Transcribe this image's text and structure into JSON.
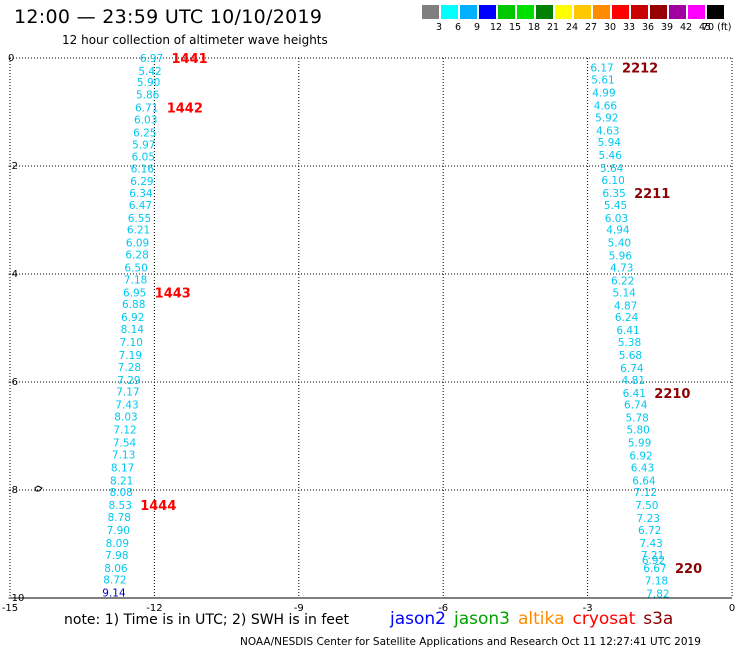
{
  "header": {
    "title": "12:00 — 23:59 UTC 10/10/2019",
    "subtitle": "12 hour collection of altimeter wave heights"
  },
  "legend": {
    "swatches": [
      {
        "color": "#7f7f7f",
        "label": "3"
      },
      {
        "color": "#00ffff",
        "label": "6"
      },
      {
        "color": "#00b0ff",
        "label": "9"
      },
      {
        "color": "#0000ff",
        "label": "12"
      },
      {
        "color": "#00c800",
        "label": "15"
      },
      {
        "color": "#00e000",
        "label": "18"
      },
      {
        "color": "#007f00",
        "label": "21"
      },
      {
        "color": "#ffff00",
        "label": "24"
      },
      {
        "color": "#ffc800",
        "label": "27"
      },
      {
        "color": "#ff8c00",
        "label": "30"
      },
      {
        "color": "#ff0000",
        "label": "33"
      },
      {
        "color": "#c80000",
        "label": "36"
      },
      {
        "color": "#960000",
        "label": "39"
      },
      {
        "color": "#a000a0",
        "label": "42"
      },
      {
        "color": "#ff00ff",
        "label": "45"
      },
      {
        "color": "#000000",
        "label": "70 (ft)"
      }
    ]
  },
  "axes": {
    "x_ticks": [
      {
        "value": -15,
        "label": "-15"
      },
      {
        "value": -12,
        "label": "-12"
      },
      {
        "value": -9,
        "label": "-9"
      },
      {
        "value": -6,
        "label": "-6"
      },
      {
        "value": -3,
        "label": "-3"
      },
      {
        "value": 0,
        "label": "0"
      }
    ],
    "y_ticks": [
      {
        "value": 0,
        "label": "0"
      },
      {
        "value": -2,
        "label": "-2"
      },
      {
        "value": -4,
        "label": "-4"
      },
      {
        "value": -6,
        "label": "-6"
      },
      {
        "value": -8,
        "label": "-8"
      },
      {
        "value": -10,
        "label": "-10"
      }
    ],
    "xlim": [
      -15,
      0
    ],
    "ylim": [
      -10,
      0
    ],
    "grid": true
  },
  "colors": {
    "swh_cyan": "#00c8f0",
    "swh_blue": "#0000cc",
    "time_label_red": "#ff0000",
    "time_label_darkred": "#8b0000",
    "jason2": "#0000ff",
    "jason3": "#00a000",
    "altika": "#ff8c00",
    "cryosat": "#ff0000",
    "s3a": "#8b0000"
  },
  "tracks": [
    {
      "satellite": "cryosat",
      "time_labels": [
        {
          "text": "1441",
          "index": 0
        },
        {
          "text": "1442",
          "index": 4
        },
        {
          "text": "1443",
          "index": 19
        },
        {
          "text": "1444",
          "index": 36
        }
      ],
      "points": [
        {
          "lon": -12.06,
          "lat": 0.0,
          "swh": "6.97"
        },
        {
          "lon": -12.09,
          "lat": -0.24,
          "swh": "5.42"
        },
        {
          "lon": -12.12,
          "lat": -0.44,
          "swh": "5.90"
        },
        {
          "lon": -12.14,
          "lat": -0.68,
          "swh": "5.86"
        },
        {
          "lon": -12.16,
          "lat": -0.92,
          "swh": "6.71"
        },
        {
          "lon": -12.18,
          "lat": -1.14,
          "swh": "6.03"
        },
        {
          "lon": -12.2,
          "lat": -1.38,
          "swh": "6.25"
        },
        {
          "lon": -12.22,
          "lat": -1.6,
          "swh": "5.97"
        },
        {
          "lon": -12.23,
          "lat": -1.82,
          "swh": "6.05"
        },
        {
          "lon": -12.25,
          "lat": -2.05,
          "swh": "6.16"
        },
        {
          "lon": -12.26,
          "lat": -2.28,
          "swh": "6.29"
        },
        {
          "lon": -12.28,
          "lat": -2.5,
          "swh": "6.34"
        },
        {
          "lon": -12.29,
          "lat": -2.72,
          "swh": "6.47"
        },
        {
          "lon": -12.31,
          "lat": -2.96,
          "swh": "6.55"
        },
        {
          "lon": -12.33,
          "lat": -3.18,
          "swh": "6.21"
        },
        {
          "lon": -12.35,
          "lat": -3.42,
          "swh": "6.09"
        },
        {
          "lon": -12.36,
          "lat": -3.64,
          "swh": "6.28"
        },
        {
          "lon": -12.38,
          "lat": -3.88,
          "swh": "6.50"
        },
        {
          "lon": -12.39,
          "lat": -4.1,
          "swh": "7.18"
        },
        {
          "lon": -12.41,
          "lat": -4.34,
          "swh": "6.95"
        },
        {
          "lon": -12.43,
          "lat": -4.56,
          "swh": "6.88"
        },
        {
          "lon": -12.45,
          "lat": -4.8,
          "swh": "6.92"
        },
        {
          "lon": -12.46,
          "lat": -5.02,
          "swh": "8.14"
        },
        {
          "lon": -12.48,
          "lat": -5.26,
          "swh": "7.10"
        },
        {
          "lon": -12.5,
          "lat": -5.5,
          "swh": "7.19"
        },
        {
          "lon": -12.52,
          "lat": -5.72,
          "swh": "7.28"
        },
        {
          "lon": -12.53,
          "lat": -5.96,
          "swh": "7.29"
        },
        {
          "lon": -12.55,
          "lat": -6.18,
          "swh": "7.17"
        },
        {
          "lon": -12.57,
          "lat": -6.42,
          "swh": "7.43"
        },
        {
          "lon": -12.59,
          "lat": -6.64,
          "swh": "8.03"
        },
        {
          "lon": -12.61,
          "lat": -6.88,
          "swh": "7.12"
        },
        {
          "lon": -12.62,
          "lat": -7.12,
          "swh": "7.54"
        },
        {
          "lon": -12.64,
          "lat": -7.34,
          "swh": "7.13"
        },
        {
          "lon": -12.66,
          "lat": -7.58,
          "swh": "8.17"
        },
        {
          "lon": -12.68,
          "lat": -7.82,
          "swh": "8.21"
        },
        {
          "lon": -12.69,
          "lat": -8.04,
          "swh": "8.08"
        },
        {
          "lon": -12.71,
          "lat": -8.28,
          "swh": "8.53"
        },
        {
          "lon": -12.73,
          "lat": -8.5,
          "swh": "8.78"
        },
        {
          "lon": -12.75,
          "lat": -8.74,
          "swh": "7.90"
        },
        {
          "lon": -12.77,
          "lat": -8.98,
          "swh": "8.09"
        },
        {
          "lon": -12.78,
          "lat": -9.2,
          "swh": "7.98"
        },
        {
          "lon": -12.8,
          "lat": -9.44,
          "swh": "8.06"
        },
        {
          "lon": -12.82,
          "lat": -9.66,
          "swh": "8.72"
        },
        {
          "lon": -12.84,
          "lat": -9.9,
          "swh": "9.14",
          "blue": true
        }
      ]
    },
    {
      "satellite": "s3a",
      "time_labels": [
        {
          "text": "2212",
          "index": 0
        },
        {
          "text": "2211",
          "index": 10
        },
        {
          "text": "2210",
          "index": 26
        },
        {
          "text": "220",
          "index": 41
        }
      ],
      "points": [
        {
          "lon": -2.7,
          "lat": -0.18,
          "swh": "6.17"
        },
        {
          "lon": -2.68,
          "lat": -0.4,
          "swh": "5.61"
        },
        {
          "lon": -2.66,
          "lat": -0.64,
          "swh": "4.99"
        },
        {
          "lon": -2.63,
          "lat": -0.88,
          "swh": "4.66"
        },
        {
          "lon": -2.6,
          "lat": -1.1,
          "swh": "5.92"
        },
        {
          "lon": -2.58,
          "lat": -1.34,
          "swh": "4.63"
        },
        {
          "lon": -2.55,
          "lat": -1.56,
          "swh": "5.94"
        },
        {
          "lon": -2.53,
          "lat": -1.8,
          "swh": "5.46"
        },
        {
          "lon": -2.5,
          "lat": -2.04,
          "swh": "5.64"
        },
        {
          "lon": -2.47,
          "lat": -2.26,
          "swh": "6.10"
        },
        {
          "lon": -2.45,
          "lat": -2.5,
          "swh": "6.35"
        },
        {
          "lon": -2.42,
          "lat": -2.72,
          "swh": "5.45"
        },
        {
          "lon": -2.4,
          "lat": -2.96,
          "swh": "6.03"
        },
        {
          "lon": -2.37,
          "lat": -3.18,
          "swh": "4.94"
        },
        {
          "lon": -2.34,
          "lat": -3.42,
          "swh": "5.40"
        },
        {
          "lon": -2.32,
          "lat": -3.66,
          "swh": "5.96"
        },
        {
          "lon": -2.29,
          "lat": -3.88,
          "swh": "4.73"
        },
        {
          "lon": -2.27,
          "lat": -4.12,
          "swh": "6.22"
        },
        {
          "lon": -2.24,
          "lat": -4.34,
          "swh": "5.14"
        },
        {
          "lon": -2.21,
          "lat": -4.58,
          "swh": "4.87"
        },
        {
          "lon": -2.19,
          "lat": -4.8,
          "swh": "6.24"
        },
        {
          "lon": -2.16,
          "lat": -5.04,
          "swh": "6.41"
        },
        {
          "lon": -2.13,
          "lat": -5.26,
          "swh": "5.38"
        },
        {
          "lon": -2.11,
          "lat": -5.5,
          "swh": "5.68"
        },
        {
          "lon": -2.08,
          "lat": -5.74,
          "swh": "6.74"
        },
        {
          "lon": -2.05,
          "lat": -5.96,
          "swh": "4.81"
        },
        {
          "lon": -2.03,
          "lat": -6.2,
          "swh": "6.41"
        },
        {
          "lon": -2.0,
          "lat": -6.42,
          "swh": "6.74"
        },
        {
          "lon": -1.97,
          "lat": -6.66,
          "swh": "5.78"
        },
        {
          "lon": -1.95,
          "lat": -6.88,
          "swh": "5.80"
        },
        {
          "lon": -1.92,
          "lat": -7.12,
          "swh": "5.99"
        },
        {
          "lon": -1.89,
          "lat": -7.36,
          "swh": "6.92"
        },
        {
          "lon": -1.86,
          "lat": -7.58,
          "swh": "6.43"
        },
        {
          "lon": -1.83,
          "lat": -7.82,
          "swh": "6.64"
        },
        {
          "lon": -1.8,
          "lat": -8.04,
          "swh": "7.12"
        },
        {
          "lon": -1.77,
          "lat": -8.28,
          "swh": "7.50"
        },
        {
          "lon": -1.74,
          "lat": -8.52,
          "swh": "7.23"
        },
        {
          "lon": -1.71,
          "lat": -8.74,
          "swh": "6.72"
        },
        {
          "lon": -1.68,
          "lat": -8.98,
          "swh": "7.43"
        },
        {
          "lon": -1.65,
          "lat": -9.2,
          "swh": "7.21"
        },
        {
          "lon": -1.63,
          "lat": -9.3,
          "swh": "6.92"
        },
        {
          "lon": -1.6,
          "lat": -9.44,
          "swh": "6.67"
        },
        {
          "lon": -1.57,
          "lat": -9.68,
          "swh": "7.18"
        },
        {
          "lon": -1.54,
          "lat": -9.92,
          "swh": "7.82"
        }
      ]
    }
  ],
  "satellites": [
    {
      "name": "jason2",
      "color": "#0000ff"
    },
    {
      "name": "jason3",
      "color": "#00a000"
    },
    {
      "name": "altika",
      "color": "#ff8c00"
    },
    {
      "name": "cryosat",
      "color": "#ff0000"
    },
    {
      "name": "s3a",
      "color": "#8b0000"
    }
  ],
  "footer": {
    "note": "note:  1) Time is in UTC; 2) SWH is in feet",
    "credit": "NOAA/NESDIS Center for Satellite Applications and Research    Oct 11 12:27:41 UTC 2019"
  }
}
